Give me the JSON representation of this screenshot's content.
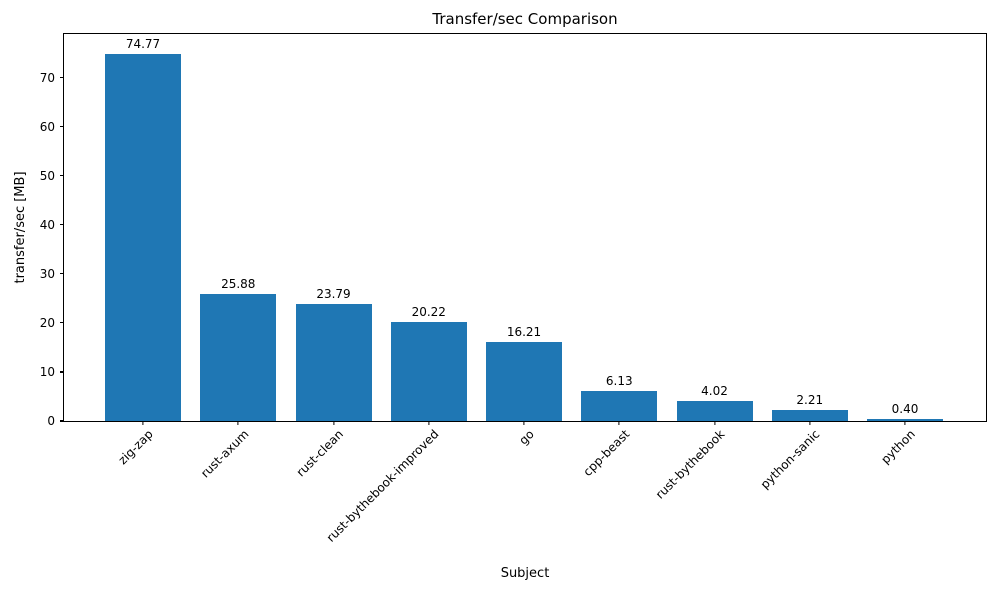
{
  "chart_data": {
    "type": "bar",
    "title": "Transfer/sec Comparison",
    "xlabel": "Subject",
    "ylabel": "transfer/sec [MB]",
    "categories": [
      "zig-zap",
      "rust-axum",
      "rust-clean",
      "rust-bythebook-improved",
      "go",
      "cpp-beast",
      "rust-bythebook",
      "python-sanic",
      "python"
    ],
    "values": [
      74.77,
      25.88,
      23.79,
      20.22,
      16.21,
      6.13,
      4.02,
      2.21,
      0.4
    ],
    "value_labels": [
      "74.77",
      "25.88",
      "23.79",
      "20.22",
      "16.21",
      "6.13",
      "4.02",
      "2.21",
      "0.40"
    ],
    "yticks": [
      0,
      10,
      20,
      30,
      40,
      50,
      60,
      70
    ],
    "ylim": [
      0,
      78.9
    ],
    "xtick_rotation_deg": 45,
    "grid": false,
    "legend": "none",
    "bar_color": "#1f77b4",
    "text_color": "#000000",
    "background_color": "#ffffff"
  }
}
